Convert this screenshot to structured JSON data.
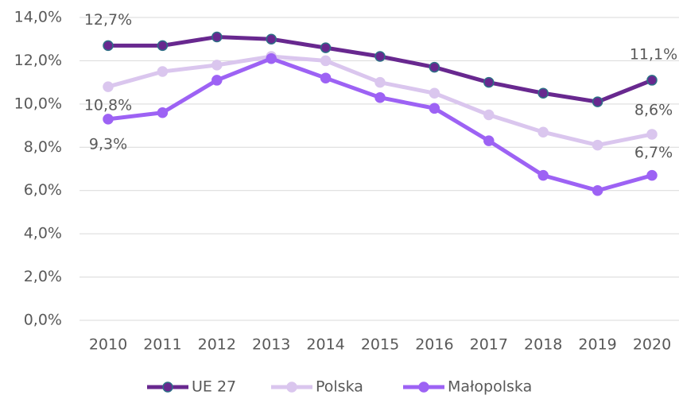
{
  "chart_data": {
    "type": "line",
    "categories": [
      "2010",
      "2011",
      "2012",
      "2013",
      "2014",
      "2015",
      "2016",
      "2017",
      "2018",
      "2019",
      "2020"
    ],
    "series": [
      {
        "name": "UE 27",
        "color": "#68288f",
        "values": [
          12.7,
          12.7,
          13.1,
          13.0,
          12.6,
          12.2,
          11.7,
          11.0,
          10.5,
          10.1,
          11.1
        ],
        "value_labels": [
          "12,7%",
          null,
          null,
          null,
          null,
          null,
          null,
          null,
          null,
          null,
          "11,1%"
        ]
      },
      {
        "name": "Polska",
        "color": "#dac6ee",
        "values": [
          10.8,
          11.5,
          11.8,
          12.2,
          12.0,
          11.0,
          10.5,
          9.5,
          8.7,
          8.1,
          8.6
        ],
        "value_labels": [
          "10,8%",
          null,
          null,
          null,
          null,
          null,
          null,
          null,
          null,
          null,
          "8,6%"
        ]
      },
      {
        "name": "Małopolska",
        "color": "#9d62f4",
        "values": [
          9.3,
          9.6,
          11.1,
          12.1,
          11.2,
          10.3,
          9.8,
          8.3,
          6.7,
          6.0,
          6.7
        ],
        "value_labels": [
          "9,3%",
          null,
          null,
          null,
          null,
          null,
          null,
          null,
          null,
          null,
          "6,7%"
        ]
      }
    ],
    "ylim": [
      0,
      14
    ],
    "yticks": [
      {
        "value": 0,
        "label": "0,0%"
      },
      {
        "value": 2,
        "label": "2,0%"
      },
      {
        "value": 4,
        "label": "4,0%"
      },
      {
        "value": 6,
        "label": "6,0%"
      },
      {
        "value": 8,
        "label": "8,0%"
      },
      {
        "value": 10,
        "label": "10,0%"
      },
      {
        "value": 12,
        "label": "12,0%"
      },
      {
        "value": 14,
        "label": "14,0%"
      }
    ],
    "grid": true,
    "legend": "bottom"
  }
}
